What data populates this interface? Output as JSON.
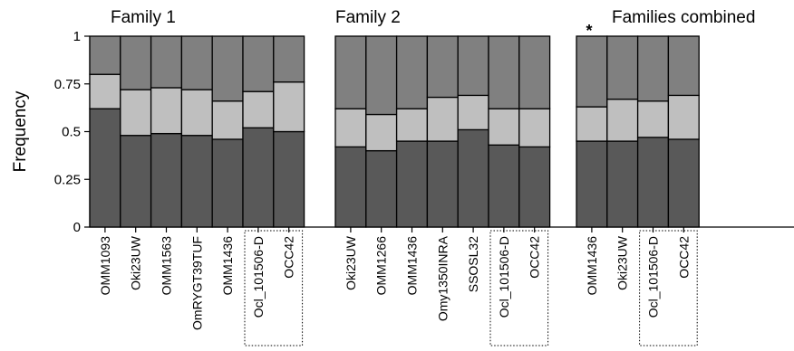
{
  "chart_data": {
    "type": "bar",
    "stacked": true,
    "ylabel": "Frequency",
    "ylim": [
      0,
      1
    ],
    "yticks": [
      0,
      0.25,
      0.5,
      0.75,
      1
    ],
    "ytick_labels": [
      "0",
      "0.25",
      "0.5",
      "0.75",
      "1"
    ],
    "segment_colors": [
      "#595959",
      "#bfbfbf",
      "#808080"
    ],
    "panels": [
      {
        "title": "Family 1",
        "annotation": "",
        "categories": [
          "OMM1093",
          "Oki23UW",
          "OMM1563",
          "OmRYGT39TUF",
          "OMM1436",
          "Ocl_101506-D",
          "OCC42"
        ],
        "boxed": [
          "Ocl_101506-D",
          "OCC42"
        ],
        "bottom": [
          0.62,
          0.48,
          0.49,
          0.48,
          0.46,
          0.52,
          0.5
        ],
        "middle": [
          0.18,
          0.24,
          0.24,
          0.24,
          0.2,
          0.19,
          0.26
        ],
        "top": [
          0.2,
          0.28,
          0.27,
          0.28,
          0.34,
          0.29,
          0.24
        ]
      },
      {
        "title": "Family 2",
        "annotation": "",
        "categories": [
          "Oki23UW",
          "OMM1266",
          "OMM1436",
          "Omy1350INRA",
          "SSOSL32",
          "Ocl_101506-D",
          "OCC42"
        ],
        "boxed": [
          "Ocl_101506-D",
          "OCC42"
        ],
        "bottom": [
          0.42,
          0.4,
          0.45,
          0.45,
          0.51,
          0.43,
          0.42
        ],
        "middle": [
          0.2,
          0.19,
          0.17,
          0.23,
          0.18,
          0.19,
          0.2
        ],
        "top": [
          0.38,
          0.41,
          0.38,
          0.32,
          0.31,
          0.38,
          0.38
        ]
      },
      {
        "title": "Families combined",
        "annotation": "*",
        "categories": [
          "OMM1436",
          "Oki23UW",
          "Ocl_101506-D",
          "OCC42"
        ],
        "boxed": [
          "Ocl_101506-D",
          "OCC42"
        ],
        "bottom": [
          0.45,
          0.45,
          0.47,
          0.46
        ],
        "middle": [
          0.18,
          0.22,
          0.19,
          0.23
        ],
        "top": [
          0.37,
          0.33,
          0.34,
          0.31
        ]
      }
    ]
  }
}
